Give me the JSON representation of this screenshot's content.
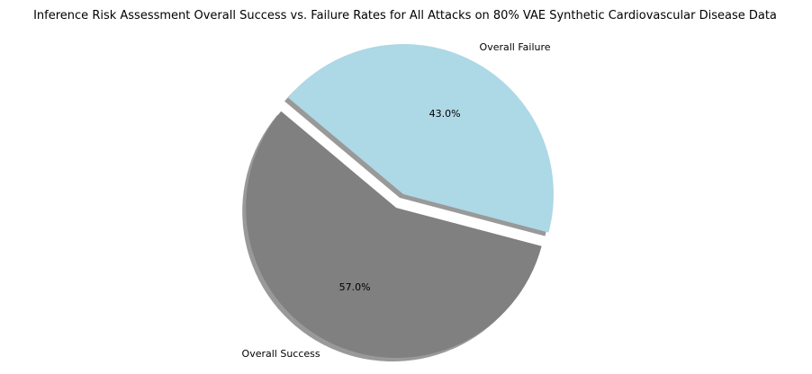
{
  "chart_data": {
    "type": "pie",
    "title": "Inference Risk Assessment Overall Success vs. Failure Rates for All Attacks on 80% VAE Synthetic Cardiovascular Disease Data",
    "slices": [
      {
        "label": "Overall Success",
        "value": 57.0,
        "percent_label": "57.0%",
        "color": "#808080",
        "exploded": true
      },
      {
        "label": "Overall Failure",
        "value": 43.0,
        "percent_label": "43.0%",
        "color": "#add8e6",
        "exploded": false
      }
    ],
    "start_angle_deg": 140,
    "direction": "counterclockwise",
    "shadow": true
  }
}
